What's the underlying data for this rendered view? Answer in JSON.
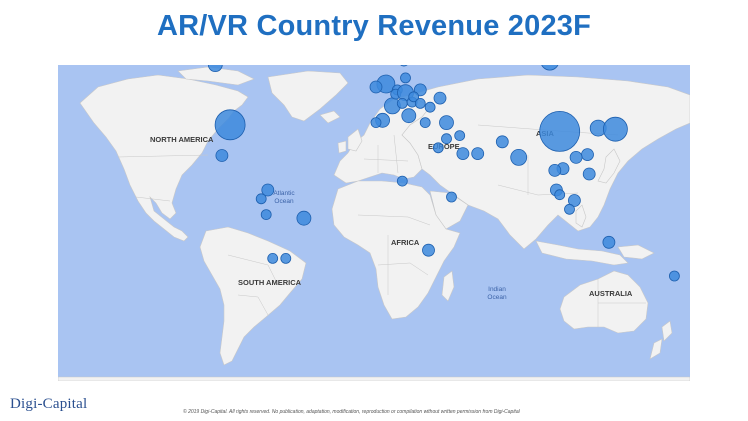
{
  "title": "AR/VR Country Revenue 2023F",
  "logo": "Digi-Capital",
  "copyright": "© 2019 Digi-Capital. All rights reserved. No publication, adaptation, modification, reproduction or compilation without written permission from Digi-Capital",
  "colors": {
    "ocean": "#a9c4f2",
    "land": "#f2f2f2",
    "border": "#c8c8c8",
    "bubble_fill": "#3d89dd",
    "bubble_stroke": "#1d5fae",
    "title": "#1f6fc1"
  },
  "labels": {
    "north_america": "NORTH AMERICA",
    "south_america": "SOUTH AMERICA",
    "europe": "EUROPE",
    "africa": "AFRICA",
    "asia": "ASIA",
    "australia": "AUSTRALIA",
    "atlantic_1": "Atlantic",
    "atlantic_2": "Ocean",
    "indian_1": "Indian",
    "indian_2": "Ocean"
  },
  "chart_data": {
    "type": "bubble-map",
    "value_note": "relative bubble size (not printed on image)",
    "points": [
      {
        "lon": -97,
        "lat": 38,
        "size": 15
      },
      {
        "lon": -106,
        "lat": 60,
        "size": 7
      },
      {
        "lon": -102,
        "lat": 23,
        "size": 6
      },
      {
        "lon": -74,
        "lat": 4,
        "size": 6
      },
      {
        "lon": -78,
        "lat": -1,
        "size": 5
      },
      {
        "lon": -75,
        "lat": -10,
        "size": 5
      },
      {
        "lon": -52,
        "lat": -12,
        "size": 7
      },
      {
        "lon": -71,
        "lat": -33,
        "size": 5
      },
      {
        "lon": -63,
        "lat": -33,
        "size": 5
      },
      {
        "lon": -2,
        "lat": 54,
        "size": 9
      },
      {
        "lon": -8,
        "lat": 53,
        "size": 6
      },
      {
        "lon": 2,
        "lat": 46,
        "size": 8
      },
      {
        "lon": -4,
        "lat": 40,
        "size": 7
      },
      {
        "lon": -8,
        "lat": 39,
        "size": 5
      },
      {
        "lon": 5,
        "lat": 52,
        "size": 5
      },
      {
        "lon": 4,
        "lat": 50.5,
        "size": 5
      },
      {
        "lon": 10,
        "lat": 51,
        "size": 8
      },
      {
        "lon": 8,
        "lat": 47,
        "size": 5
      },
      {
        "lon": 14,
        "lat": 47.5,
        "size": 5
      },
      {
        "lon": 12,
        "lat": 42,
        "size": 7
      },
      {
        "lon": 10,
        "lat": 56,
        "size": 5
      },
      {
        "lon": 15,
        "lat": 62,
        "size": 6
      },
      {
        "lon": 9,
        "lat": 61,
        "size": 5
      },
      {
        "lon": 26,
        "lat": 62,
        "size": 6
      },
      {
        "lon": 19,
        "lat": 52,
        "size": 6
      },
      {
        "lon": 15,
        "lat": 49.5,
        "size": 5
      },
      {
        "lon": 19,
        "lat": 47,
        "size": 5
      },
      {
        "lon": 25,
        "lat": 45.5,
        "size": 5
      },
      {
        "lon": 22,
        "lat": 39,
        "size": 5
      },
      {
        "lon": 35,
        "lat": 39,
        "size": 7
      },
      {
        "lon": 31,
        "lat": 49,
        "size": 6
      },
      {
        "lon": 35,
        "lat": 31.5,
        "size": 5
      },
      {
        "lon": 43,
        "lat": 33,
        "size": 5
      },
      {
        "lon": 30,
        "lat": 27,
        "size": 5
      },
      {
        "lon": 45,
        "lat": 24,
        "size": 6
      },
      {
        "lon": 54,
        "lat": 24,
        "size": 6
      },
      {
        "lon": 69,
        "lat": 30,
        "size": 6
      },
      {
        "lon": 79,
        "lat": 22,
        "size": 8
      },
      {
        "lon": 98,
        "lat": 61,
        "size": 9
      },
      {
        "lon": 104,
        "lat": 35,
        "size": 20
      },
      {
        "lon": 127.5,
        "lat": 36.5,
        "size": 8
      },
      {
        "lon": 138,
        "lat": 36,
        "size": 12
      },
      {
        "lon": 121,
        "lat": 23.5,
        "size": 6
      },
      {
        "lon": 114,
        "lat": 22,
        "size": 6
      },
      {
        "lon": 106,
        "lat": 16,
        "size": 6
      },
      {
        "lon": 101,
        "lat": 15,
        "size": 6
      },
      {
        "lon": 122,
        "lat": 13,
        "size": 6
      },
      {
        "lon": 102,
        "lat": 4,
        "size": 6
      },
      {
        "lon": 104,
        "lat": 1.3,
        "size": 5
      },
      {
        "lon": 113,
        "lat": -2,
        "size": 6
      },
      {
        "lon": 110,
        "lat": -7,
        "size": 5
      },
      {
        "lon": 8,
        "lat": 9,
        "size": 5
      },
      {
        "lon": 38,
        "lat": 0,
        "size": 5
      },
      {
        "lon": 24,
        "lat": -29,
        "size": 6
      },
      {
        "lon": 134,
        "lat": -25,
        "size": 6
      },
      {
        "lon": 174,
        "lat": -41,
        "size": 5
      }
    ]
  }
}
